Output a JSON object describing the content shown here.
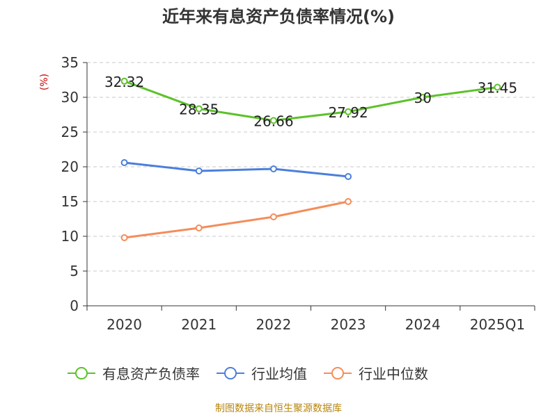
{
  "page": {
    "title": "近年来有息资产负债率情况(%)",
    "unit": "(%)",
    "source": "制图数据来自恒生聚源数据库"
  },
  "legend": [
    {
      "label": "有息资产负债率",
      "color": "#5cc22a"
    },
    {
      "label": "行业均值",
      "color": "#4a7fdc"
    },
    {
      "label": "行业中位数",
      "color": "#f58c5a"
    }
  ],
  "chart_data": {
    "type": "line",
    "title": "近年来有息资产负债率情况(%)",
    "ylabel": "(%)",
    "xlabel": "",
    "categories": [
      "2020",
      "2021",
      "2022",
      "2023",
      "2024",
      "2025Q1"
    ],
    "ylim": [
      0,
      35
    ],
    "yticks": [
      0,
      5,
      10,
      15,
      20,
      25,
      30,
      35
    ],
    "grid": true,
    "legend_position": "bottom",
    "series": [
      {
        "name": "有息资产负债率",
        "color": "#5cc22a",
        "values": [
          32.32,
          28.35,
          26.66,
          27.92,
          30,
          31.45
        ],
        "labels": [
          "32.32",
          "28.35",
          "26.66",
          "27.92",
          "30",
          "31.45"
        ],
        "show_labels": true
      },
      {
        "name": "行业均值",
        "color": "#4a7fdc",
        "values": [
          20.6,
          19.4,
          19.7,
          18.6,
          null,
          null
        ],
        "show_labels": false
      },
      {
        "name": "行业中位数",
        "color": "#f58c5a",
        "values": [
          9.8,
          11.2,
          12.8,
          15.0,
          null,
          null
        ],
        "show_labels": false
      }
    ]
  }
}
